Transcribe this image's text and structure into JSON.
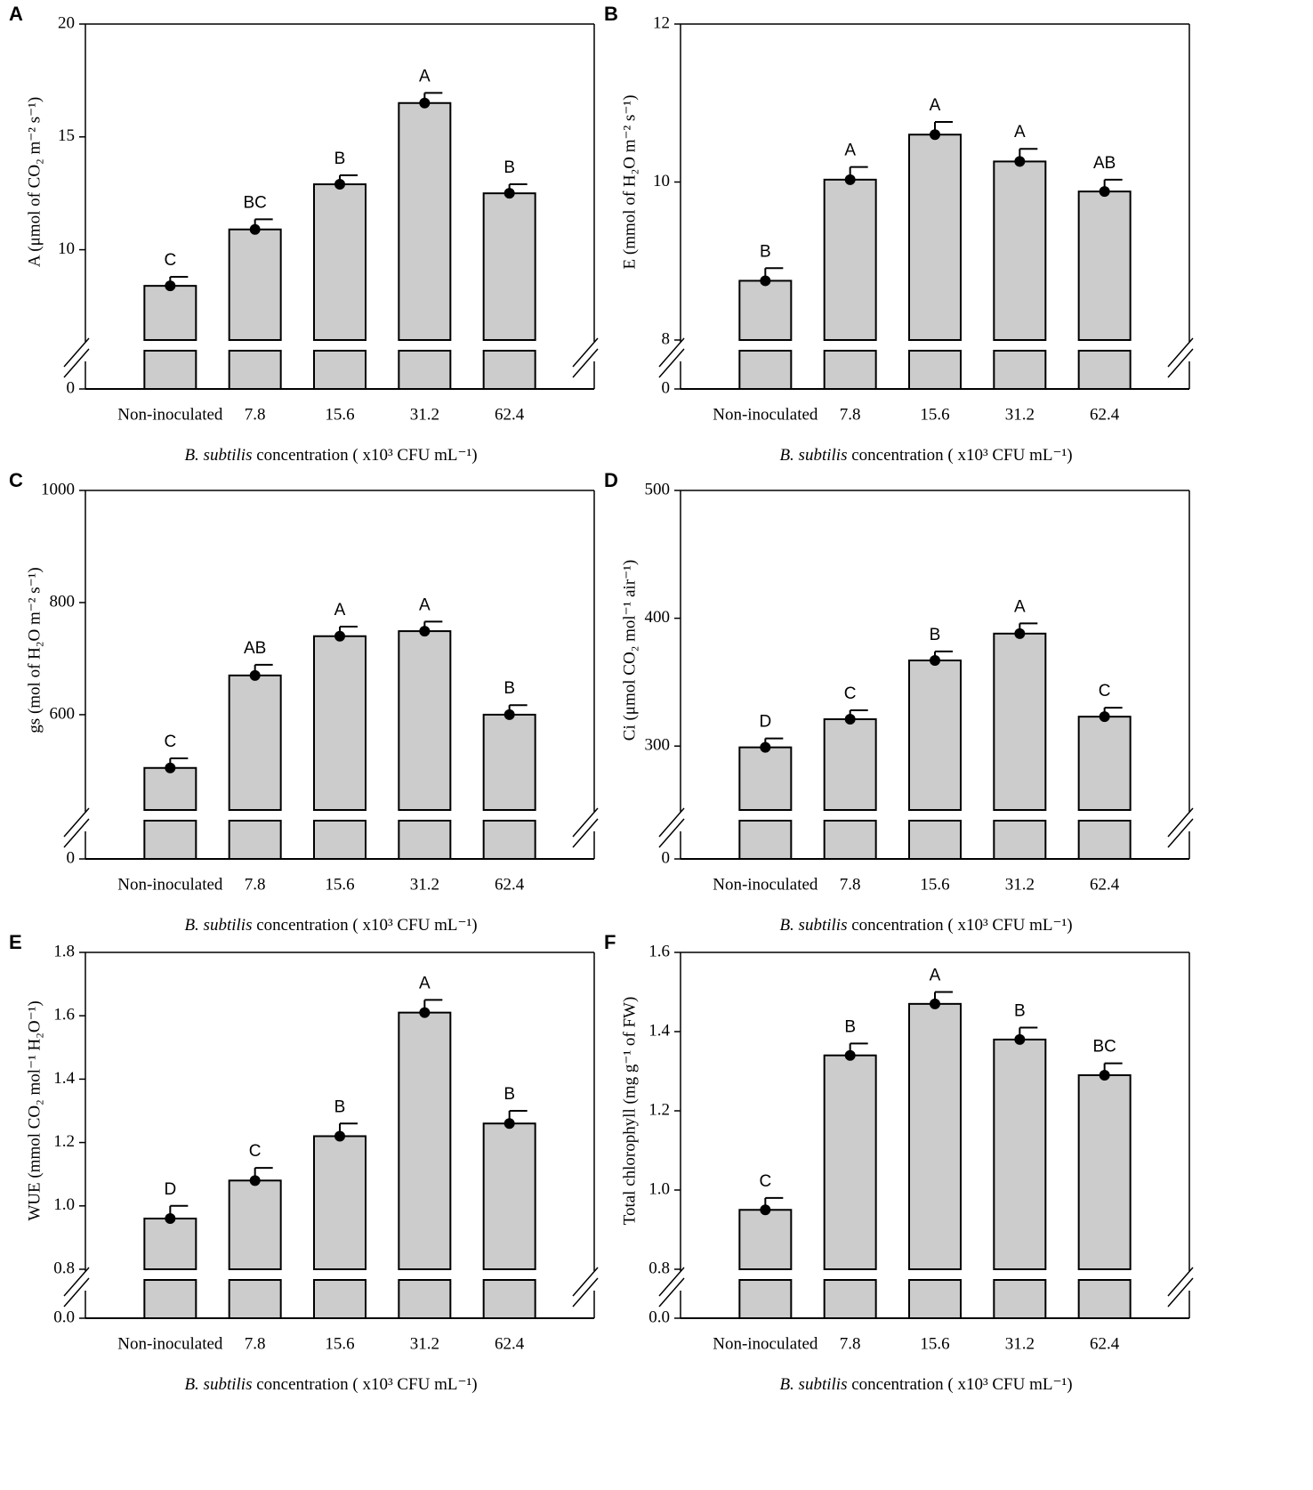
{
  "chart_data": [
    {
      "type": "bar",
      "panel": "A",
      "ylabel": "A (μmol of CO₂ m⁻² s⁻¹)",
      "xlabel": [
        "B. subtilis",
        " concentration ( x10³ CFU mL⁻¹)"
      ],
      "categories": [
        "Non-inoculated",
        "7.8",
        "15.6",
        "31.2",
        "62.4"
      ],
      "values": [
        8.4,
        10.9,
        12.9,
        16.5,
        12.5
      ],
      "errors": [
        0.4,
        0.45,
        0.4,
        0.45,
        0.4
      ],
      "letters": [
        "C",
        "BC",
        "B",
        "A",
        "B"
      ],
      "color": "#cccccc",
      "ylim": [
        0,
        20
      ],
      "ybreak": 6,
      "yticks": [
        0,
        10,
        15,
        20
      ]
    },
    {
      "type": "bar",
      "panel": "B",
      "ylabel": "E (mmol of H₂O m⁻² s⁻¹)",
      "xlabel": [
        "B. subtilis",
        " concentration ( x10³ CFU mL⁻¹)"
      ],
      "categories": [
        "Non-inoculated",
        "7.8",
        "15.6",
        "31.2",
        "62.4"
      ],
      "values": [
        8.75,
        10.03,
        10.6,
        10.26,
        9.88
      ],
      "errors": [
        0.16,
        0.16,
        0.16,
        0.16,
        0.15
      ],
      "letters": [
        "B",
        "A",
        "A",
        "A",
        "AB"
      ],
      "color": "#cccccc",
      "ylim": [
        0,
        12
      ],
      "ybreak": 8,
      "yticks": [
        0,
        8,
        10,
        12
      ]
    },
    {
      "type": "bar",
      "panel": "C",
      "ylabel": "gs (mol of H₂O m⁻² s⁻¹)",
      "xlabel": [
        "B. subtilis",
        " concentration ( x10³ CFU mL⁻¹)"
      ],
      "categories": [
        "Non-inoculated",
        "7.8",
        "15.6",
        "31.2",
        "62.4"
      ],
      "values": [
        505,
        670,
        740,
        749,
        600
      ],
      "errors": [
        17,
        19,
        17,
        17,
        17
      ],
      "letters": [
        "C",
        "AB",
        "A",
        "A",
        "B"
      ],
      "color": "#cccccc",
      "ylim": [
        0,
        1000
      ],
      "ybreak": 430,
      "yticks": [
        0,
        600,
        800,
        1000
      ]
    },
    {
      "type": "bar",
      "panel": "D",
      "ylabel": "Ci (μmol CO₂ mol⁻¹  air⁻¹)",
      "xlabel": [
        "B. subtilis",
        " concentration ( x10³ CFU mL⁻¹)"
      ],
      "categories": [
        "Non-inoculated",
        "7.8",
        "15.6",
        "31.2",
        "62.4"
      ],
      "values": [
        299,
        321,
        367,
        388,
        323
      ],
      "errors": [
        7,
        7,
        7,
        8,
        7
      ],
      "letters": [
        "D",
        "C",
        "B",
        "A",
        "C"
      ],
      "color": "#cccccc",
      "ylim": [
        0,
        500
      ],
      "ybreak": 250,
      "yticks": [
        0,
        300,
        400,
        500
      ]
    },
    {
      "type": "bar",
      "panel": "E",
      "ylabel": "WUE (mmol CO₂ mol⁻¹  H₂O⁻¹)",
      "xlabel": [
        "B. subtilis",
        " concentration ( x10³ CFU mL⁻¹)"
      ],
      "categories": [
        "Non-inoculated",
        "7.8",
        "15.6",
        "31.2",
        "62.4"
      ],
      "values": [
        0.96,
        1.08,
        1.22,
        1.61,
        1.26
      ],
      "errors": [
        0.04,
        0.04,
        0.04,
        0.04,
        0.04
      ],
      "letters": [
        "D",
        "C",
        "B",
        "A",
        "B"
      ],
      "color": "#cccccc",
      "ylim": [
        0,
        1.8
      ],
      "ybreak": 0.8,
      "yticks": [
        {
          "value": 0,
          "label": "0.0"
        },
        0.8,
        {
          "value": 1,
          "label": "1.0"
        },
        1.2,
        1.4,
        1.6,
        1.8
      ]
    },
    {
      "type": "bar",
      "panel": "F",
      "ylabel": "Total chlorophyll (mg g⁻¹ of FW)",
      "xlabel": [
        "B. subtilis",
        " concentration ( x10³ CFU mL⁻¹)"
      ],
      "categories": [
        "Non-inoculated",
        "7.8",
        "15.6",
        "31.2",
        "62.4"
      ],
      "values": [
        0.95,
        1.34,
        1.47,
        1.38,
        1.29
      ],
      "errors": [
        0.03,
        0.03,
        0.03,
        0.03,
        0.03
      ],
      "letters": [
        "C",
        "B",
        "A",
        "B",
        "BC"
      ],
      "color": "#cccccc",
      "ylim": [
        0,
        1.6
      ],
      "ybreak": 0.8,
      "yticks": [
        {
          "value": 0,
          "label": "0.0"
        },
        0.8,
        {
          "value": 1,
          "label": "1.0"
        },
        1.2,
        1.4,
        1.6
      ]
    }
  ]
}
